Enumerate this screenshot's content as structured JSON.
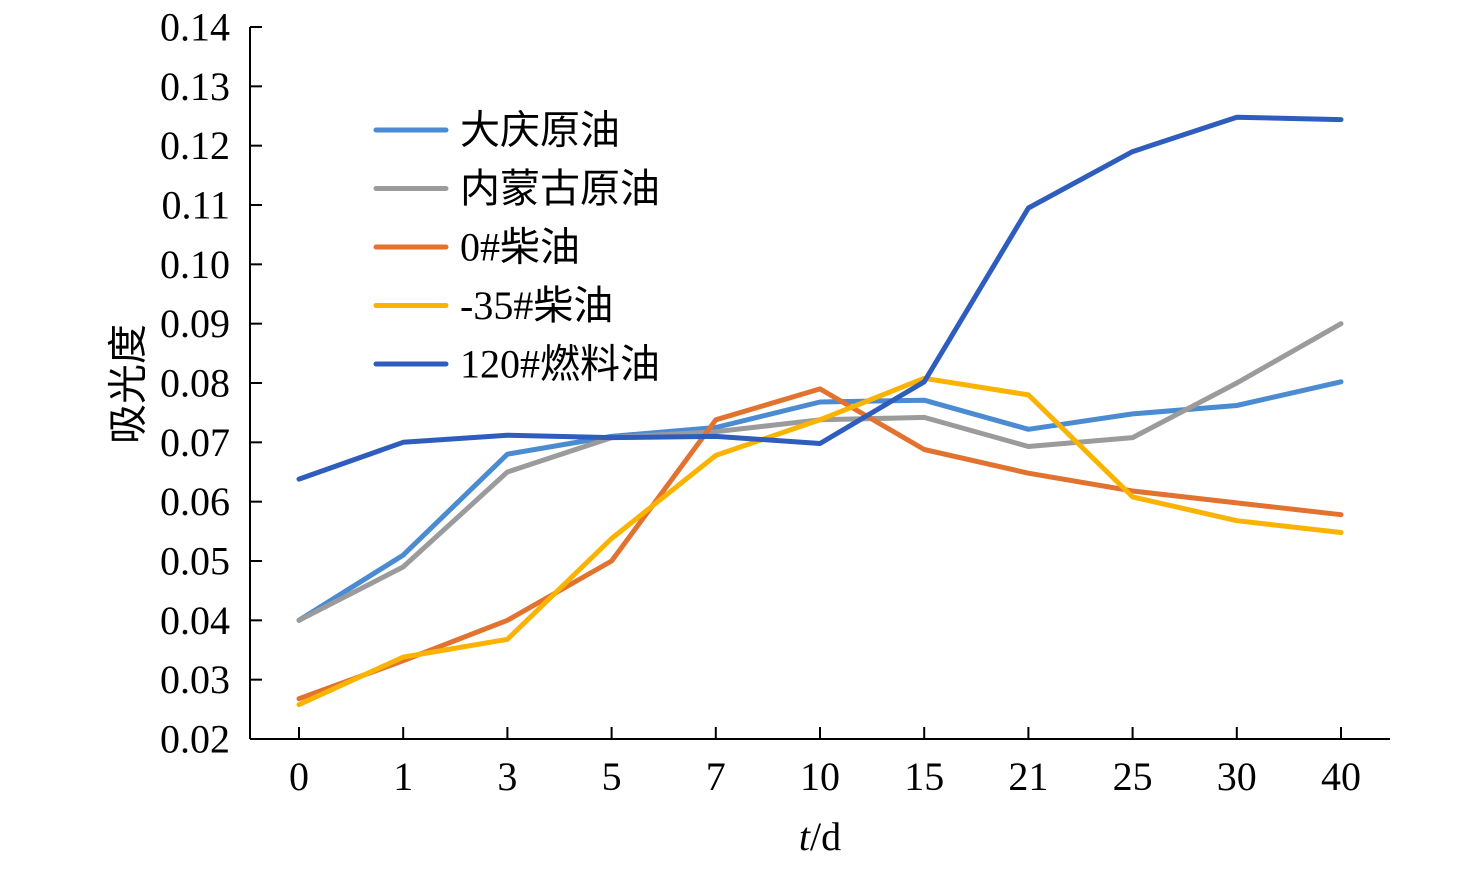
{
  "chart_data": {
    "type": "line",
    "title": "",
    "ylabel": "吸光度",
    "xlabel_italic": "t",
    "xlabel_unit": "/d",
    "ylim": [
      0.02,
      0.14
    ],
    "ytick_values": [
      0.02,
      0.03,
      0.04,
      0.05,
      0.06,
      0.07,
      0.08,
      0.09,
      0.1,
      0.11,
      0.12,
      0.13,
      0.14
    ],
    "ytick_labels": [
      "0.02",
      "0.03",
      "0.04",
      "0.05",
      "0.06",
      "0.07",
      "0.08",
      "0.09",
      "0.10",
      "0.11",
      "0.12",
      "0.13",
      "0.14"
    ],
    "categories": [
      "0",
      "1",
      "3",
      "5",
      "7",
      "10",
      "15",
      "21",
      "25",
      "30",
      "40"
    ],
    "grid": false,
    "legend_position": "upper-left",
    "series": [
      {
        "name": "大庆原油",
        "color": "#4a8bd2",
        "values": [
          0.04,
          0.051,
          0.068,
          0.071,
          0.0725,
          0.0768,
          0.0771,
          0.0722,
          0.0748,
          0.0762,
          0.0802
        ]
      },
      {
        "name": "内蒙古原油",
        "color": "#9b9b9b",
        "values": [
          0.04,
          0.049,
          0.065,
          0.0708,
          0.0718,
          0.0738,
          0.0742,
          0.0693,
          0.0708,
          0.08,
          0.09
        ]
      },
      {
        "name": "0#柴油",
        "color": "#e2722f",
        "values": [
          0.0268,
          0.0332,
          0.04,
          0.05,
          0.0738,
          0.079,
          0.0688,
          0.0648,
          0.0618,
          0.0598,
          0.0578
        ]
      },
      {
        "name": "-35#柴油",
        "color": "#f9b300",
        "values": [
          0.0258,
          0.0338,
          0.0368,
          0.0538,
          0.0678,
          0.0738,
          0.0808,
          0.078,
          0.0608,
          0.0568,
          0.0548
        ]
      },
      {
        "name": "120#燃料油",
        "color": "#2e5dbd",
        "values": [
          0.0638,
          0.07,
          0.0712,
          0.0708,
          0.071,
          0.0698,
          0.0802,
          0.1095,
          0.119,
          0.1248,
          0.1244
        ]
      }
    ]
  }
}
